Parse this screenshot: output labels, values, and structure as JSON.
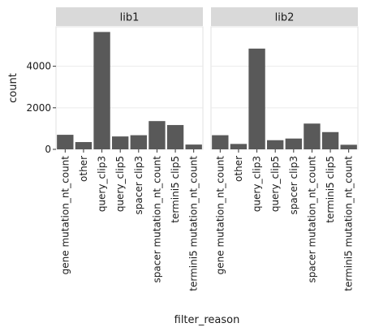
{
  "chart_data": {
    "type": "bar",
    "xlabel": "filter_reason",
    "ylabel": "count",
    "ylim": [
      0,
      5900
    ],
    "yticks": [
      0,
      2000,
      4000
    ],
    "ytick_labels": [
      "0",
      "2000",
      "4000"
    ],
    "grid": true,
    "categories": [
      "gene mutation_nt_count",
      "other",
      "query_clip3",
      "query_clip5",
      "spacer clip3",
      "spacer mutation_nt_count",
      "termini5 clip5",
      "termini5 mutation_nt_count"
    ],
    "panels": [
      {
        "name": "lib1",
        "values": [
          700,
          350,
          5650,
          620,
          680,
          1360,
          1170,
          230
        ]
      },
      {
        "name": "lib2",
        "values": [
          680,
          260,
          4850,
          440,
          520,
          1240,
          830,
          220
        ]
      }
    ],
    "colors": {
      "bar": "#595959",
      "panel_bg": "#ffffff",
      "strip_bg": "#d9d9d9",
      "grid": "#ebebeb",
      "border": "#e0e0e0"
    }
  }
}
